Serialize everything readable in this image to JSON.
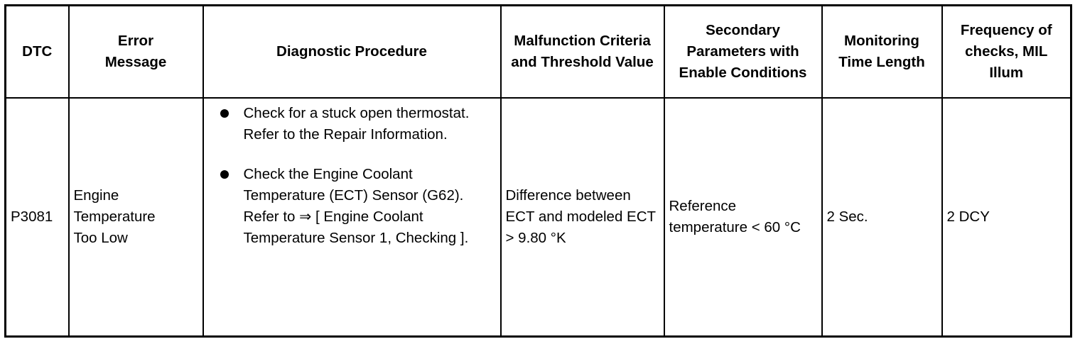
{
  "headers": [
    "DTC",
    "Error Message",
    "Diagnostic Procedure",
    "Malfunction Criteria and Threshold Value",
    "Secondary Parameters with Enable Conditions",
    "Monitoring Time Length",
    "Frequency of checks, MIL Illum"
  ],
  "row": {
    "dtc": "P3081",
    "error_message": "Engine Temperature Too Low",
    "procedure": [
      {
        "icon": "bullet-icon",
        "text": "Check for a stuck open thermostat. Refer to the Repair Information."
      },
      {
        "icon": "bullet-icon",
        "text": "Check the Engine Coolant Temperature (ECT) Sensor (G62). Refer to ⇒ [ Engine Coolant Temperature Sensor 1, Checking ]."
      }
    ],
    "malfunction_criteria": "Difference between ECT and modeled ECT > 9.80 °K",
    "secondary_parameters": "Reference temperature < 60 °C",
    "monitoring_time": "2 Sec.",
    "frequency": "2 DCY"
  }
}
